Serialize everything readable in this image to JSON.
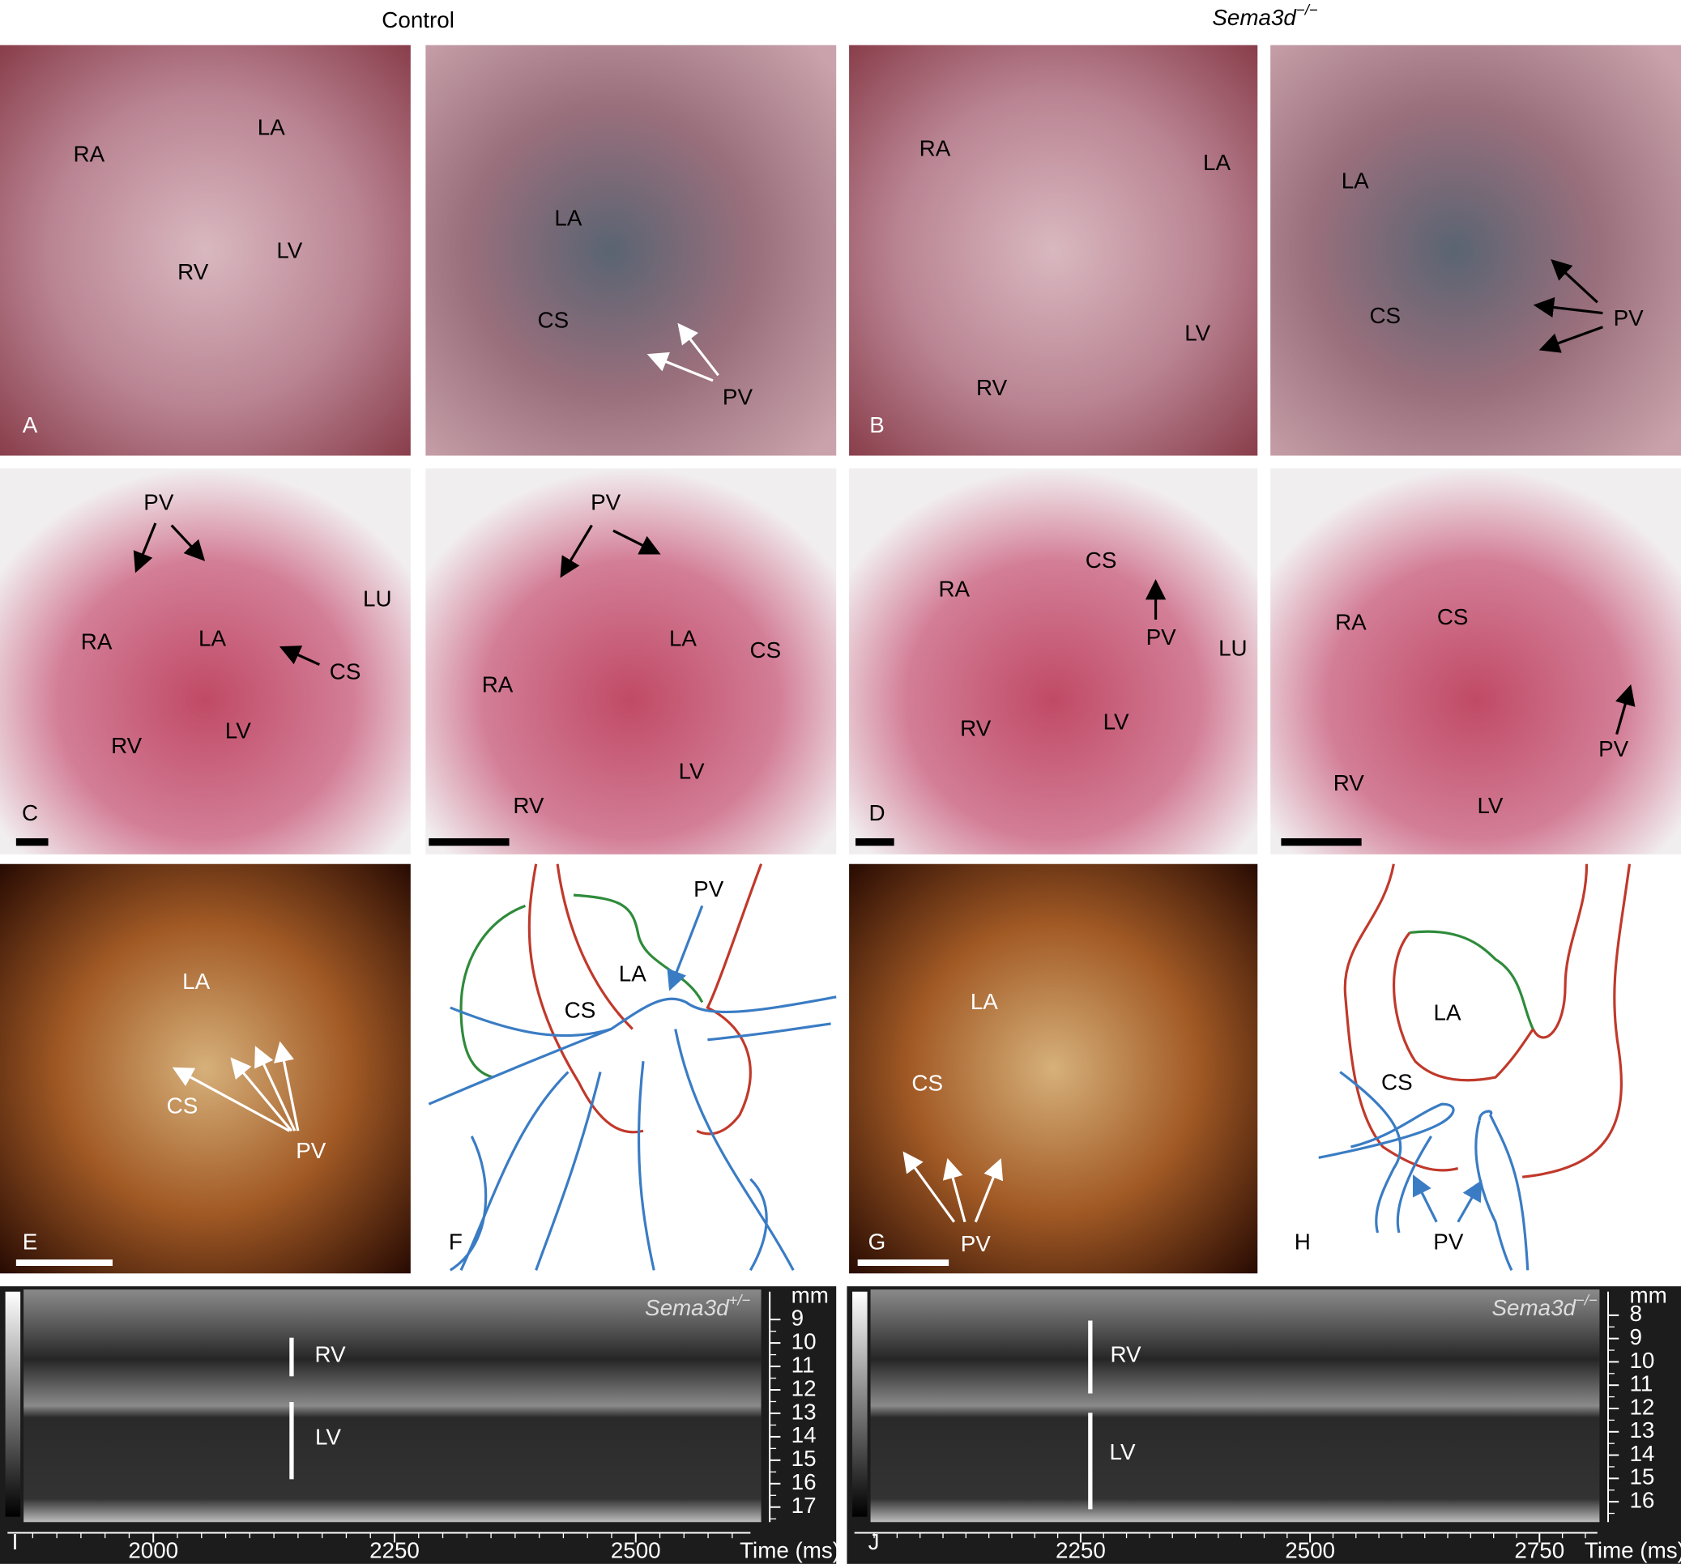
{
  "header": {
    "left": "Control",
    "right_gene": "Sema3d",
    "right_genotype": "−/−"
  },
  "panels": [
    {
      "letter": "A",
      "labels": [
        "RA",
        "LA",
        "RV",
        "LV"
      ]
    },
    {
      "labels": [
        "LA",
        "CS",
        "PV"
      ]
    },
    {
      "letter": "B",
      "labels": [
        "RA",
        "LA",
        "RV",
        "LV"
      ]
    },
    {
      "labels": [
        "LA",
        "CS",
        "PV"
      ]
    },
    {
      "letter": "C",
      "labels": [
        "PV",
        "RA",
        "LA",
        "CS",
        "LU",
        "RV",
        "LV"
      ]
    },
    {
      "labels": [
        "PV",
        "LA",
        "CS",
        "RA",
        "LV",
        "RV"
      ]
    },
    {
      "letter": "D",
      "labels": [
        "RA",
        "CS",
        "PV",
        "LU",
        "RV",
        "LV"
      ]
    },
    {
      "labels": [
        "RA",
        "CS",
        "PV",
        "RV",
        "LV"
      ]
    },
    {
      "letter": "E",
      "labels": [
        "LA",
        "CS",
        "PV"
      ]
    },
    {
      "letter": "F",
      "labels": [
        "PV",
        "LA",
        "CS"
      ]
    },
    {
      "letter": "G",
      "labels": [
        "LA",
        "CS",
        "PV"
      ]
    },
    {
      "letter": "H",
      "labels": [
        "LA",
        "CS",
        "PV"
      ]
    },
    {
      "letter": "I",
      "labels": [
        "RV",
        "LV"
      ],
      "gene": "Sema3d",
      "genotype": "+/−",
      "unit": "mm",
      "time_label": "Time (ms)",
      "xticks": [
        2000,
        2250,
        2500
      ],
      "yticks": [
        9,
        10,
        11,
        12,
        13,
        14,
        15,
        16,
        17
      ]
    },
    {
      "letter": "J",
      "labels": [
        "RV",
        "LV"
      ],
      "gene": "Sema3d",
      "genotype": "−/−",
      "unit": "mm",
      "time_label": "Time (ms)",
      "xticks": [
        2250,
        2500,
        2750
      ],
      "yticks": [
        8,
        9,
        10,
        11,
        12,
        13,
        14,
        15,
        16
      ]
    }
  ]
}
